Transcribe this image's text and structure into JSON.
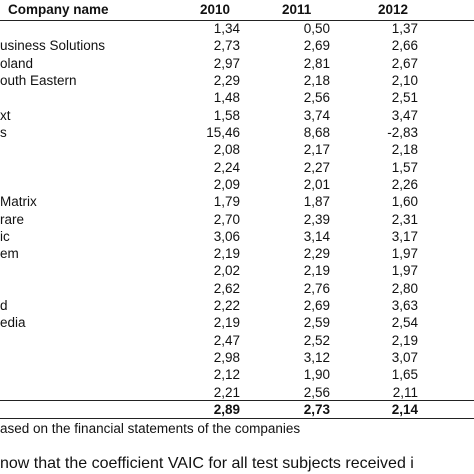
{
  "table": {
    "header": [
      "Company name",
      "2010",
      "2011",
      "2012"
    ],
    "rows": [
      {
        "values": [
          "1,34",
          "0,50",
          "1,37"
        ]
      },
      {
        "name": "usiness Solutions",
        "values": [
          "2,73",
          "2,69",
          "2,66"
        ]
      },
      {
        "name": "oland",
        "values": [
          "2,97",
          "2,81",
          "2,67"
        ]
      },
      {
        "name": "outh Eastern",
        "values": [
          "2,29",
          "2,18",
          "2,10"
        ]
      },
      {
        "values": [
          "1,48",
          "2,56",
          "2,51"
        ]
      },
      {
        "name": "xt",
        "values": [
          "1,58",
          "3,74",
          "3,47"
        ]
      },
      {
        "name": "s",
        "values": [
          "15,46",
          "8,68",
          "-2,83"
        ]
      },
      {
        "values": [
          "2,08",
          "2,17",
          "2,18"
        ]
      },
      {
        "values": [
          "2,24",
          "2,27",
          "1,57"
        ]
      },
      {
        "values": [
          "2,09",
          "2,01",
          "2,26"
        ]
      },
      {
        "name": "Matrix",
        "values": [
          "1,79",
          "1,87",
          "1,60"
        ]
      },
      {
        "name": "rare",
        "values": [
          "2,70",
          "2,39",
          "2,31"
        ]
      },
      {
        "name": "ic",
        "values": [
          "3,06",
          "3,14",
          "3,17"
        ]
      },
      {
        "name": "em",
        "values": [
          "2,19",
          "2,29",
          "1,97"
        ]
      },
      {
        "values": [
          "2,02",
          "2,19",
          "1,97"
        ]
      },
      {
        "values": [
          "2,62",
          "2,76",
          "2,80"
        ]
      },
      {
        "name": "d",
        "values": [
          "2,22",
          "2,69",
          "3,63"
        ]
      },
      {
        "name": "edia",
        "values": [
          "2,19",
          "2,59",
          "2,54"
        ]
      },
      {
        "values": [
          "2,47",
          "2,52",
          "2,19"
        ]
      },
      {
        "values": [
          "2,98",
          "3,12",
          "3,07"
        ]
      },
      {
        "values": [
          "2,12",
          "1,90",
          "1,65"
        ]
      },
      {
        "values": [
          "2,21",
          "2,56",
          "2,11"
        ]
      }
    ],
    "total": [
      "2,89",
      "2,73",
      "2,14"
    ],
    "source": "ased on the financial statements of the companies"
  },
  "body_text": "now that the coefficient VAIC for all test subjects received i"
}
